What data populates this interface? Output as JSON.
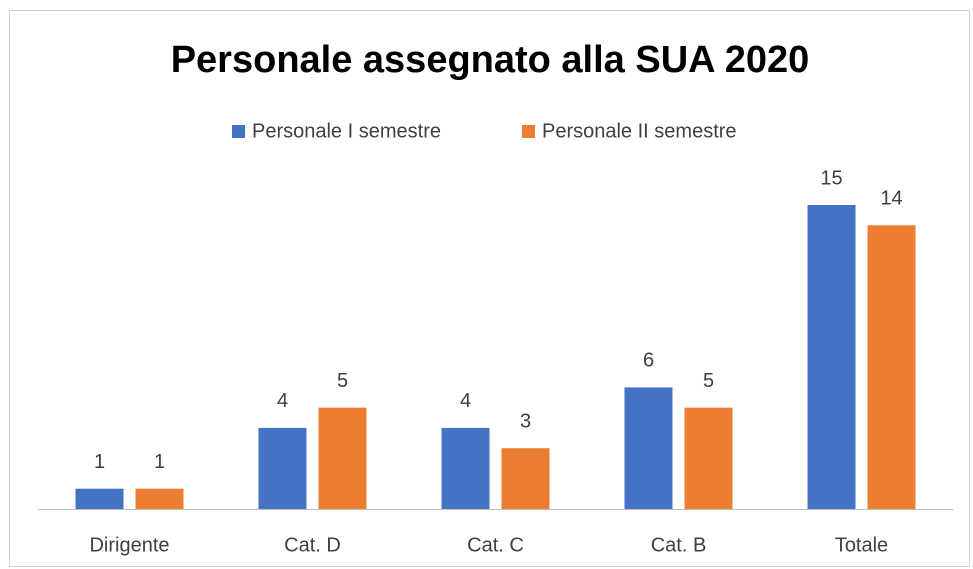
{
  "chart_data": {
    "type": "bar",
    "title": "Personale assegnato alla SUA 2020",
    "categories": [
      "Dirigente",
      "Cat. D",
      "Cat. C",
      "Cat. B",
      "Totale"
    ],
    "series": [
      {
        "name": "Personale I semestre",
        "color": "#4472c4",
        "values": [
          1,
          4,
          4,
          6,
          15
        ]
      },
      {
        "name": "Personale II semestre",
        "color": "#ed7d31",
        "values": [
          1,
          5,
          3,
          5,
          14
        ]
      }
    ],
    "legend": "top",
    "grid": false
  }
}
